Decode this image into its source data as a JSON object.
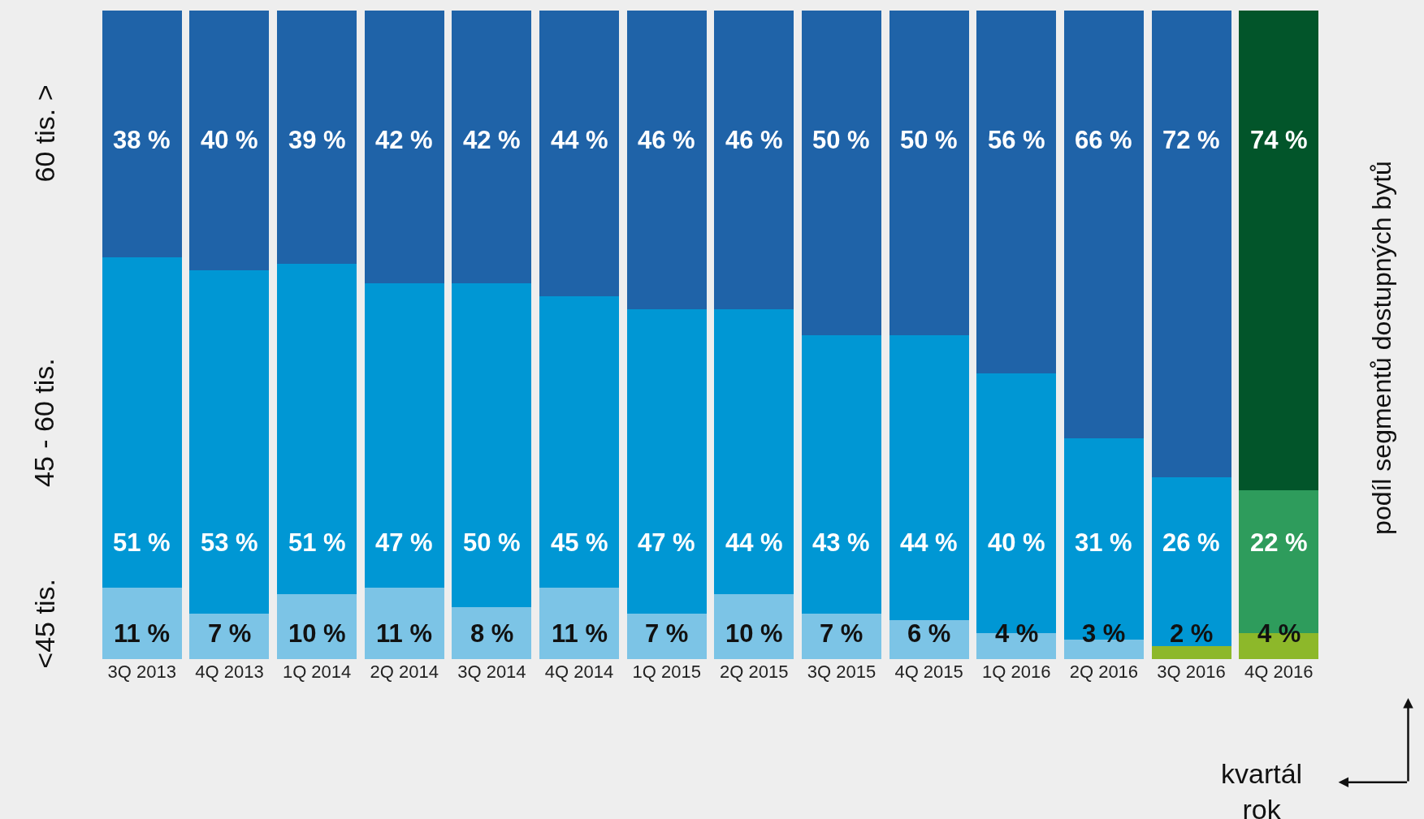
{
  "chart_data": {
    "type": "bar",
    "stacked": true,
    "xlabel": "kvartál\nrok",
    "ylabel": "podíl segmentů dostupných bytů",
    "categories": [
      "3Q 2013",
      "4Q 2013",
      "1Q 2014",
      "2Q 2014",
      "3Q 2014",
      "4Q 2014",
      "1Q 2015",
      "2Q 2015",
      "3Q 2015",
      "4Q 2015",
      "1Q 2016",
      "2Q 2016",
      "3Q 2016",
      "4Q 2016"
    ],
    "series": [
      {
        "name": "<45 tis.",
        "colors": [
          "#7cc4e6",
          "#7cc4e6",
          "#7cc4e6",
          "#7cc4e6",
          "#7cc4e6",
          "#7cc4e6",
          "#7cc4e6",
          "#7cc4e6",
          "#7cc4e6",
          "#7cc4e6",
          "#7cc4e6",
          "#7cc4e6",
          "#8db82a",
          "#8db82a"
        ],
        "values": [
          11,
          7,
          10,
          11,
          8,
          11,
          7,
          10,
          7,
          6,
          4,
          3,
          2,
          4
        ],
        "value_labels": [
          "11 %",
          "7 %",
          "10 %",
          "11 %",
          "8 %",
          "11 %",
          "7 %",
          "10 %",
          "7 %",
          "6 %",
          "4 %",
          "3 %",
          "2 %",
          "4 %"
        ]
      },
      {
        "name": "45 - 60 tis.",
        "colors": [
          "#0097d4",
          "#0097d4",
          "#0097d4",
          "#0097d4",
          "#0097d4",
          "#0097d4",
          "#0097d4",
          "#0097d4",
          "#0097d4",
          "#0097d4",
          "#0097d4",
          "#0097d4",
          "#0097d4",
          "#2e9c5c"
        ],
        "values": [
          51,
          53,
          51,
          47,
          50,
          45,
          47,
          44,
          43,
          44,
          40,
          31,
          26,
          22
        ],
        "value_labels": [
          "51 %",
          "53 %",
          "51 %",
          "47 %",
          "50 %",
          "45 %",
          "47 %",
          "44 %",
          "43 %",
          "44 %",
          "40 %",
          "31 %",
          "26 %",
          "22 %"
        ]
      },
      {
        "name": "60 tis. >",
        "colors": [
          "#1f63a8",
          "#1f63a8",
          "#1f63a8",
          "#1f63a8",
          "#1f63a8",
          "#1f63a8",
          "#1f63a8",
          "#1f63a8",
          "#1f63a8",
          "#1f63a8",
          "#1f63a8",
          "#1f63a8",
          "#1f63a8",
          "#02552a"
        ],
        "values": [
          38,
          40,
          39,
          42,
          42,
          44,
          46,
          46,
          50,
          50,
          56,
          66,
          72,
          74
        ],
        "value_labels": [
          "38 %",
          "40 %",
          "39 %",
          "42 %",
          "42 %",
          "44 %",
          "46 %",
          "46 %",
          "50 %",
          "50 %",
          "56 %",
          "66 %",
          "72 %",
          "74 %"
        ]
      }
    ],
    "ylim": [
      0,
      100
    ],
    "tick_labels": "x",
    "legend": false,
    "grid": false
  }
}
